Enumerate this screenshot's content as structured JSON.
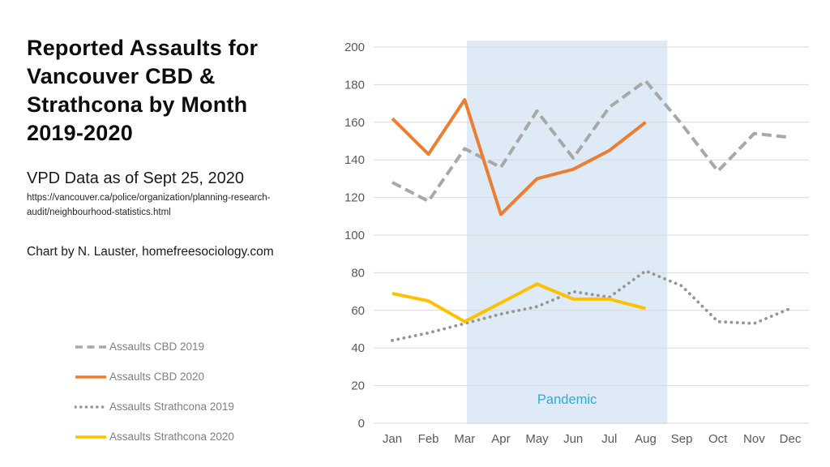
{
  "panel": {
    "title": "Reported Assaults for\nVancouver CBD &\nStrathcona by Month\n2019-2020",
    "subtitle": "VPD Data as of Sept 25, 2020",
    "source_url": "https://vancouver.ca/police/organization/planning-research-\naudit/neighbourhood-statistics.html",
    "credit": "Chart by N. Lauster, homefreesociology.com"
  },
  "chart_data": {
    "type": "line",
    "title": "Reported Assaults for Vancouver CBD & Strathcona by Month 2019-2020",
    "categories": [
      "Jan",
      "Feb",
      "Mar",
      "Apr",
      "May",
      "Jun",
      "Jul",
      "Aug",
      "Sep",
      "Oct",
      "Nov",
      "Dec"
    ],
    "series": [
      {
        "name": "Assaults CBD 2019",
        "style": "dashed",
        "color": "#a8a8a8",
        "values": [
          128,
          118,
          146,
          136,
          166,
          141,
          168,
          182,
          159,
          134,
          154,
          152
        ]
      },
      {
        "name": "Assaults CBD 2020",
        "style": "solid",
        "color": "#ed7d31",
        "values": [
          162,
          143,
          172,
          111,
          130,
          135,
          145,
          160
        ]
      },
      {
        "name": "Assaults Strathcona 2019",
        "style": "dotted",
        "color": "#969696",
        "values": [
          44,
          48,
          53,
          58,
          62,
          70,
          67,
          81,
          73,
          54,
          53,
          61
        ]
      },
      {
        "name": "Assaults Strathcona 2020",
        "style": "solid",
        "color": "#ffc000",
        "values": [
          69,
          65,
          54,
          64,
          74,
          66,
          66,
          61
        ]
      }
    ],
    "xlabel": "",
    "ylabel": "",
    "ylim": [
      0,
      200
    ],
    "ytick_step": 20,
    "grid": true,
    "gridline_color": "#d9d9d9",
    "tick_label_color": "#595959",
    "legend_position": "left-bottom",
    "annotation": {
      "label": "Pandemic",
      "color": "#29abe2",
      "band": {
        "from_month": 2.06,
        "to_month": 7.6,
        "fill": "#deeaf5"
      }
    }
  }
}
